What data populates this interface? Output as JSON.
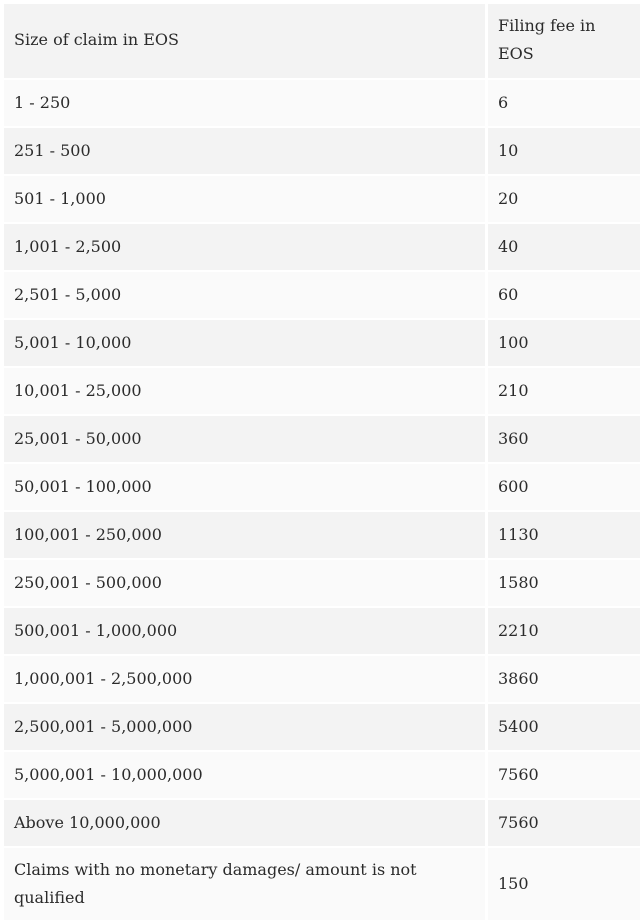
{
  "table": {
    "headers": [
      "Size of claim in EOS",
      "Filing fee in EOS"
    ],
    "rows": [
      {
        "size": "1 - 250",
        "fee": "6"
      },
      {
        "size": "251 - 500",
        "fee": "10"
      },
      {
        "size": "501 - 1,000",
        "fee": "20"
      },
      {
        "size": "1,001 - 2,500",
        "fee": "40"
      },
      {
        "size": "2,501 - 5,000",
        "fee": "60"
      },
      {
        "size": "5,001 - 10,000",
        "fee": "100"
      },
      {
        "size": "10,001 - 25,000",
        "fee": "210"
      },
      {
        "size": "25,001 - 50,000",
        "fee": "360"
      },
      {
        "size": "50,001 - 100,000",
        "fee": "600"
      },
      {
        "size": "100,001 - 250,000",
        "fee": "1130"
      },
      {
        "size": "250,001 - 500,000",
        "fee": "1580"
      },
      {
        "size": "500,001 - 1,000,000",
        "fee": "2210"
      },
      {
        "size": "1,000,001 - 2,500,000",
        "fee": "3860"
      },
      {
        "size": "2,500,001 - 5,000,000",
        "fee": "5400"
      },
      {
        "size": "5,000,001 - 10,000,000",
        "fee": "7560"
      },
      {
        "size": "Above 10,000,000",
        "fee": "7560"
      },
      {
        "size": "Claims with no monetary damages/ amount is not qualified",
        "fee": "150"
      }
    ]
  },
  "colors": {
    "header_bg": "#f3f3f3",
    "row_shaded_bg": "#f3f3f3",
    "row_light_bg": "#fafafa",
    "text": "#2b2b2b"
  }
}
